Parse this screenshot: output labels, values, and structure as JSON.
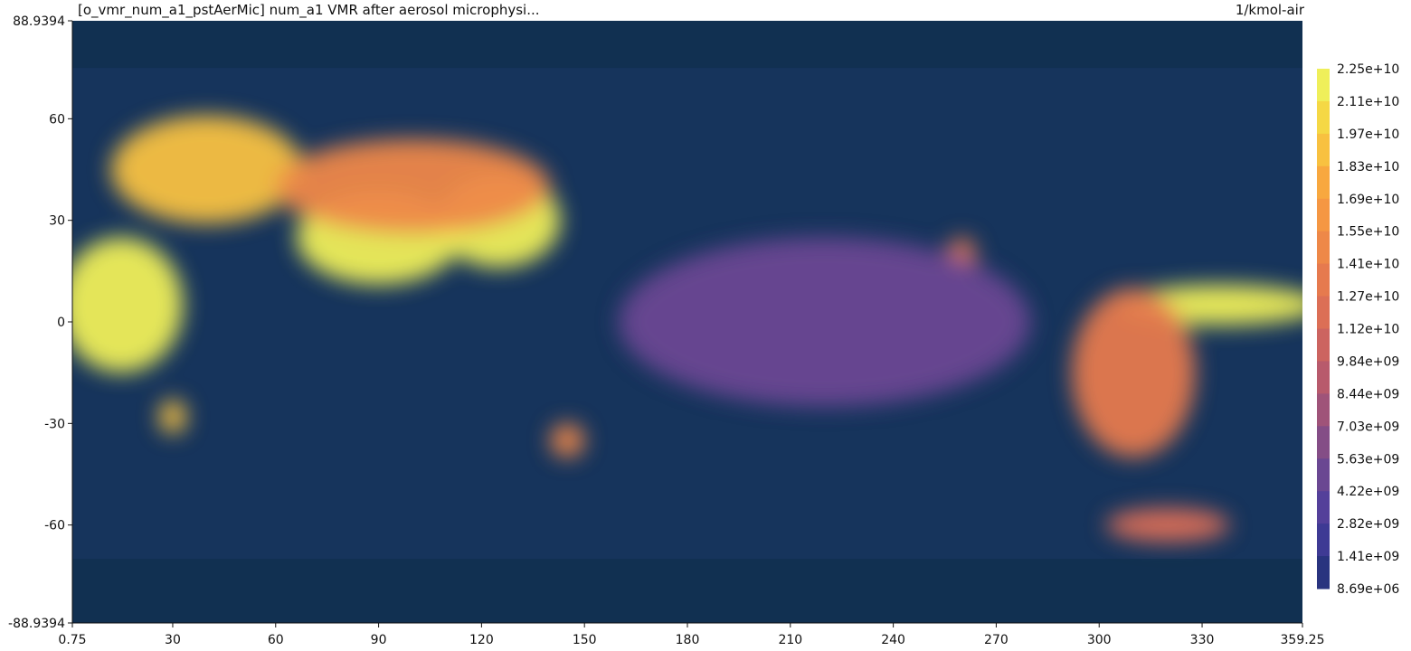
{
  "chart_data": {
    "type": "heatmap",
    "title": "[o_vmr_num_a1_pstAerMic] num_a1 VMR after aerosol microphysi...",
    "units": "1/kmol-air",
    "x_ticks": [
      "0.75",
      "30",
      "60",
      "90",
      "120",
      "150",
      "180",
      "210",
      "240",
      "270",
      "300",
      "330",
      "359.25"
    ],
    "x_tick_values": [
      0.75,
      30,
      60,
      90,
      120,
      150,
      180,
      210,
      240,
      270,
      300,
      330,
      359.25
    ],
    "y_ticks": [
      "88.9394",
      "60",
      "30",
      "0",
      "-30",
      "-60",
      "-88.9394"
    ],
    "y_tick_values": [
      88.9394,
      60,
      30,
      0,
      -30,
      -60,
      -88.9394
    ],
    "xlim": [
      0.75,
      359.25
    ],
    "ylim": [
      -88.9394,
      88.9394
    ],
    "colorbar_labels": [
      "2.25e+10",
      "2.11e+10",
      "1.97e+10",
      "1.83e+10",
      "1.69e+10",
      "1.55e+10",
      "1.41e+10",
      "1.27e+10",
      "1.12e+10",
      "9.84e+09",
      "8.44e+09",
      "7.03e+09",
      "5.63e+09",
      "4.22e+09",
      "2.82e+09",
      "1.41e+09",
      "8.69e+06"
    ],
    "colorbar_colors": [
      "#efef5a",
      "#f5d845",
      "#f8c140",
      "#f8a83f",
      "#f59743",
      "#ee8848",
      "#e67a4e",
      "#dc6f56",
      "#cc6460",
      "#b85a6c",
      "#9f5379",
      "#844d86",
      "#6a4792",
      "#54409a",
      "#3e3a94",
      "#29347f",
      "#163462"
    ],
    "colorbar_position": "right",
    "grid": false,
    "features": [
      {
        "lon": 15,
        "lat": 5,
        "level": 16,
        "rx": 18,
        "ry": 20
      },
      {
        "lon": 40,
        "lat": 45,
        "level": 14,
        "rx": 28,
        "ry": 16
      },
      {
        "lon": 90,
        "lat": 25,
        "level": 16,
        "rx": 24,
        "ry": 14
      },
      {
        "lon": 125,
        "lat": 30,
        "level": 16,
        "rx": 18,
        "ry": 14
      },
      {
        "lon": 100,
        "lat": 40,
        "level": 11,
        "rx": 40,
        "ry": 14
      },
      {
        "lon": 335,
        "lat": 5,
        "level": 16,
        "rx": 30,
        "ry": 6
      },
      {
        "lon": 310,
        "lat": -15,
        "level": 10,
        "rx": 18,
        "ry": 25
      },
      {
        "lon": 320,
        "lat": -60,
        "level": 9,
        "rx": 18,
        "ry": 5
      },
      {
        "lon": 260,
        "lat": 20,
        "level": 10,
        "rx": 4,
        "ry": 5
      },
      {
        "lon": 145,
        "lat": -35,
        "level": 11,
        "rx": 5,
        "ry": 5
      },
      {
        "lon": 220,
        "lat": 0,
        "level": 4,
        "rx": 60,
        "ry": 25
      },
      {
        "lon": 30,
        "lat": -28,
        "level": 14,
        "rx": 4,
        "ry": 5
      }
    ]
  }
}
